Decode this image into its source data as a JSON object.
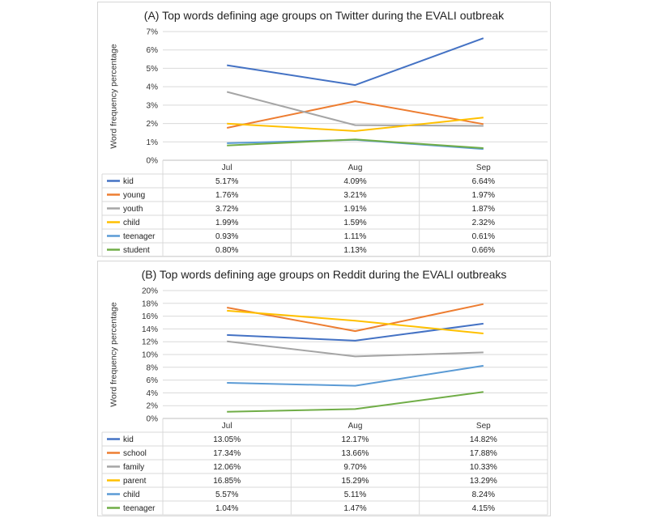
{
  "chart_data": [
    {
      "type": "line",
      "title": "(A) Top words defining age groups on Twitter during the EVALI outbreak",
      "ylabel": "Word frequency percentage",
      "categories": [
        "Jul",
        "Aug",
        "Sep"
      ],
      "ylim": [
        0,
        7
      ],
      "yticks": [
        "0%",
        "1%",
        "2%",
        "3%",
        "4%",
        "5%",
        "6%",
        "7%"
      ],
      "grid": true,
      "legend": "data table below the chart",
      "series": [
        {
          "name": "kid",
          "color": "#4472c4",
          "values": [
            5.17,
            4.09,
            6.64
          ],
          "labels": [
            "5.17%",
            "4.09%",
            "6.64%"
          ]
        },
        {
          "name": "young",
          "color": "#ed7d31",
          "values": [
            1.76,
            3.21,
            1.97
          ],
          "labels": [
            "1.76%",
            "3.21%",
            "1.97%"
          ]
        },
        {
          "name": "youth",
          "color": "#a5a5a5",
          "values": [
            3.72,
            1.91,
            1.87
          ],
          "labels": [
            "3.72%",
            "1.91%",
            "1.87%"
          ]
        },
        {
          "name": "child",
          "color": "#ffc000",
          "values": [
            1.99,
            1.59,
            2.32
          ],
          "labels": [
            "1.99%",
            "1.59%",
            "2.32%"
          ]
        },
        {
          "name": "teenager",
          "color": "#5b9bd5",
          "values": [
            0.93,
            1.11,
            0.61
          ],
          "labels": [
            "0.93%",
            "1.11%",
            "0.61%"
          ]
        },
        {
          "name": "student",
          "color": "#70ad47",
          "values": [
            0.8,
            1.13,
            0.66
          ],
          "labels": [
            "0.80%",
            "1.13%",
            "0.66%"
          ]
        }
      ]
    },
    {
      "type": "line",
      "title": "(B) Top words defining age groups on Reddit during the EVALI outbreaks",
      "ylabel": "Word frequency percentage",
      "categories": [
        "Jul",
        "Aug",
        "Sep"
      ],
      "ylim": [
        0,
        20
      ],
      "yticks": [
        "0%",
        "2%",
        "4%",
        "6%",
        "8%",
        "10%",
        "12%",
        "14%",
        "16%",
        "18%",
        "20%"
      ],
      "grid": true,
      "legend": "data table below the chart",
      "series": [
        {
          "name": "kid",
          "color": "#4472c4",
          "values": [
            13.05,
            12.17,
            14.82
          ],
          "labels": [
            "13.05%",
            "12.17%",
            "14.82%"
          ]
        },
        {
          "name": "school",
          "color": "#ed7d31",
          "values": [
            17.34,
            13.66,
            17.88
          ],
          "labels": [
            "17.34%",
            "13.66%",
            "17.88%"
          ]
        },
        {
          "name": "family",
          "color": "#a5a5a5",
          "values": [
            12.06,
            9.7,
            10.33
          ],
          "labels": [
            "12.06%",
            "9.70%",
            "10.33%"
          ]
        },
        {
          "name": "parent",
          "color": "#ffc000",
          "values": [
            16.85,
            15.29,
            13.29
          ],
          "labels": [
            "16.85%",
            "15.29%",
            "13.29%"
          ]
        },
        {
          "name": "child",
          "color": "#5b9bd5",
          "values": [
            5.57,
            5.11,
            8.24
          ],
          "labels": [
            "5.57%",
            "5.11%",
            "8.24%"
          ]
        },
        {
          "name": "teenager",
          "color": "#70ad47",
          "values": [
            1.04,
            1.47,
            4.15
          ],
          "labels": [
            "1.04%",
            "1.47%",
            "4.15%"
          ]
        }
      ]
    }
  ]
}
